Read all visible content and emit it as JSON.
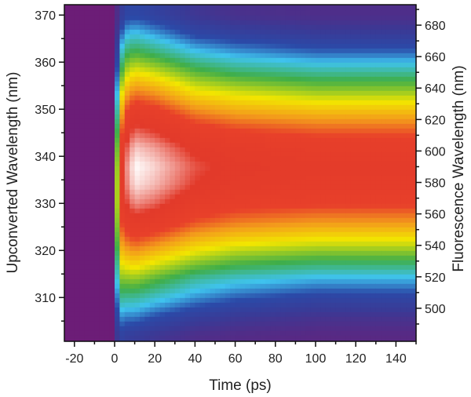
{
  "chart_data": {
    "type": "heatmap",
    "xlabel": "Time (ps)",
    "ylabel": "Upconverted Wavelength (nm)",
    "y2label": "Fluorescence Wavelength (nm)",
    "xlim": [
      -25,
      150
    ],
    "ylim": [
      300.7,
      372.2
    ],
    "y2lim": [
      479,
      693
    ],
    "xticks": [
      "-20",
      "0",
      "20",
      "40",
      "60",
      "80",
      "100",
      "120",
      "140"
    ],
    "yticks": [
      "310",
      "320",
      "330",
      "340",
      "350",
      "360",
      "370"
    ],
    "y2ticks": [
      "500",
      "520",
      "540",
      "560",
      "580",
      "600",
      "620",
      "640",
      "660",
      "680"
    ],
    "colormap": [
      "#6c1d77",
      "#3a3a96",
      "#2b4aa8",
      "#3fc3ee",
      "#3fae49",
      "#f2e600",
      "#f39a1c",
      "#e8402a",
      "#e23a2a",
      "#ffffff"
    ],
    "colormap_stops": [
      0.06,
      0.16,
      0.22,
      0.29,
      0.39,
      0.52,
      0.63,
      0.72,
      0.86,
      1.0
    ],
    "times": [
      -25,
      -1,
      0,
      2,
      5,
      10,
      20,
      40,
      60,
      100,
      150
    ],
    "wavelengths": [
      302,
      306,
      310,
      314,
      318,
      322,
      326,
      330,
      334,
      338,
      342,
      346,
      350,
      354,
      358,
      362,
      366,
      370
    ],
    "z": [
      [
        0.06,
        0.06,
        0.06,
        0.06,
        0.06,
        0.06,
        0.06,
        0.06,
        0.06,
        0.06,
        0.06,
        0.06,
        0.06,
        0.06,
        0.06,
        0.06,
        0.06,
        0.06
      ],
      [
        0.06,
        0.06,
        0.06,
        0.06,
        0.06,
        0.06,
        0.06,
        0.06,
        0.06,
        0.06,
        0.06,
        0.06,
        0.06,
        0.06,
        0.06,
        0.06,
        0.06,
        0.06
      ],
      [
        0.08,
        0.08,
        0.08,
        0.08,
        0.08,
        0.08,
        0.08,
        0.08,
        0.08,
        0.08,
        0.08,
        0.08,
        0.08,
        0.08,
        0.08,
        0.08,
        0.08,
        0.08
      ],
      [
        0.2,
        0.27,
        0.35,
        0.44,
        0.52,
        0.6,
        0.66,
        0.7,
        0.7,
        0.68,
        0.63,
        0.56,
        0.48,
        0.4,
        0.32,
        0.25,
        0.19,
        0.14
      ],
      [
        0.18,
        0.25,
        0.34,
        0.44,
        0.55,
        0.66,
        0.77,
        0.85,
        0.89,
        0.9,
        0.86,
        0.79,
        0.69,
        0.58,
        0.47,
        0.37,
        0.28,
        0.2
      ],
      [
        0.17,
        0.25,
        0.34,
        0.45,
        0.57,
        0.7,
        0.82,
        0.92,
        0.98,
        1.0,
        0.96,
        0.88,
        0.77,
        0.65,
        0.52,
        0.4,
        0.3,
        0.21
      ],
      [
        0.15,
        0.22,
        0.31,
        0.41,
        0.53,
        0.66,
        0.79,
        0.89,
        0.95,
        0.97,
        0.93,
        0.85,
        0.74,
        0.62,
        0.49,
        0.37,
        0.27,
        0.19
      ],
      [
        0.12,
        0.18,
        0.26,
        0.34,
        0.46,
        0.58,
        0.7,
        0.79,
        0.86,
        0.88,
        0.84,
        0.75,
        0.64,
        0.52,
        0.41,
        0.3,
        0.21,
        0.15
      ],
      [
        0.11,
        0.16,
        0.23,
        0.31,
        0.42,
        0.54,
        0.66,
        0.75,
        0.82,
        0.84,
        0.8,
        0.71,
        0.6,
        0.49,
        0.37,
        0.27,
        0.19,
        0.13
      ],
      [
        0.1,
        0.14,
        0.2,
        0.28,
        0.39,
        0.51,
        0.63,
        0.73,
        0.79,
        0.81,
        0.77,
        0.68,
        0.57,
        0.45,
        0.34,
        0.24,
        0.17,
        0.12
      ],
      [
        0.1,
        0.14,
        0.2,
        0.28,
        0.39,
        0.51,
        0.63,
        0.73,
        0.79,
        0.81,
        0.77,
        0.68,
        0.57,
        0.45,
        0.34,
        0.24,
        0.17,
        0.12
      ]
    ]
  }
}
